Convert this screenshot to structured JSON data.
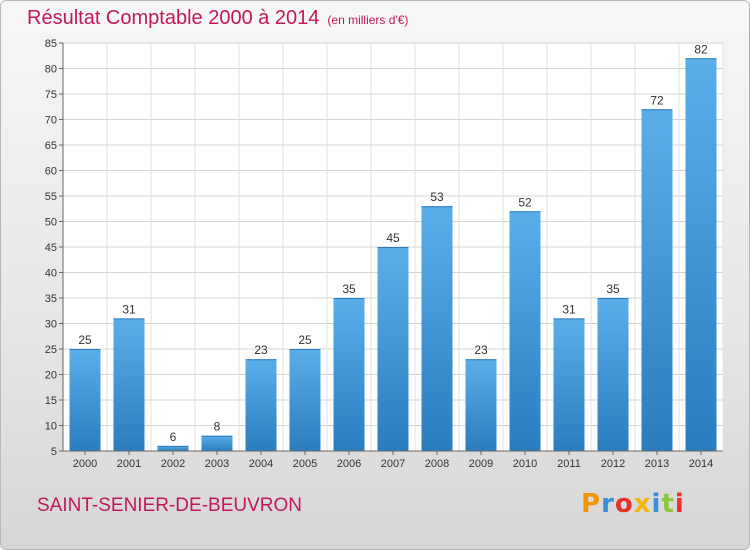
{
  "header": {
    "title": "Résultat Comptable 2000 à 2014",
    "subtitle": "(en milliers d'€)"
  },
  "footer": {
    "place": "SAINT-SENIER-DE-BEUVRON",
    "logo": "Proxiti"
  },
  "colors": {
    "accent": "#c2185b",
    "bar_light": "#5aaee8",
    "bar_dark": "#2a7dbf"
  },
  "chart_data": {
    "type": "bar",
    "title": "Résultat Comptable 2000 à 2014",
    "subtitle": "(en milliers d'€)",
    "categories": [
      "2000",
      "2001",
      "2002",
      "2003",
      "2004",
      "2005",
      "2006",
      "2007",
      "2008",
      "2009",
      "2010",
      "2011",
      "2012",
      "2013",
      "2014"
    ],
    "values": [
      25,
      31,
      6,
      8,
      23,
      25,
      35,
      45,
      53,
      23,
      52,
      31,
      35,
      72,
      82
    ],
    "data_labels": [
      "25",
      "31",
      "6",
      "8",
      "23",
      "25",
      "35",
      "45",
      "53",
      "23",
      "52",
      "31",
      "35",
      "72",
      "82"
    ],
    "ylim": [
      5,
      85
    ],
    "yticks": [
      5,
      10,
      15,
      20,
      25,
      30,
      35,
      40,
      45,
      50,
      55,
      60,
      65,
      70,
      75,
      80,
      85
    ],
    "grid": true
  }
}
